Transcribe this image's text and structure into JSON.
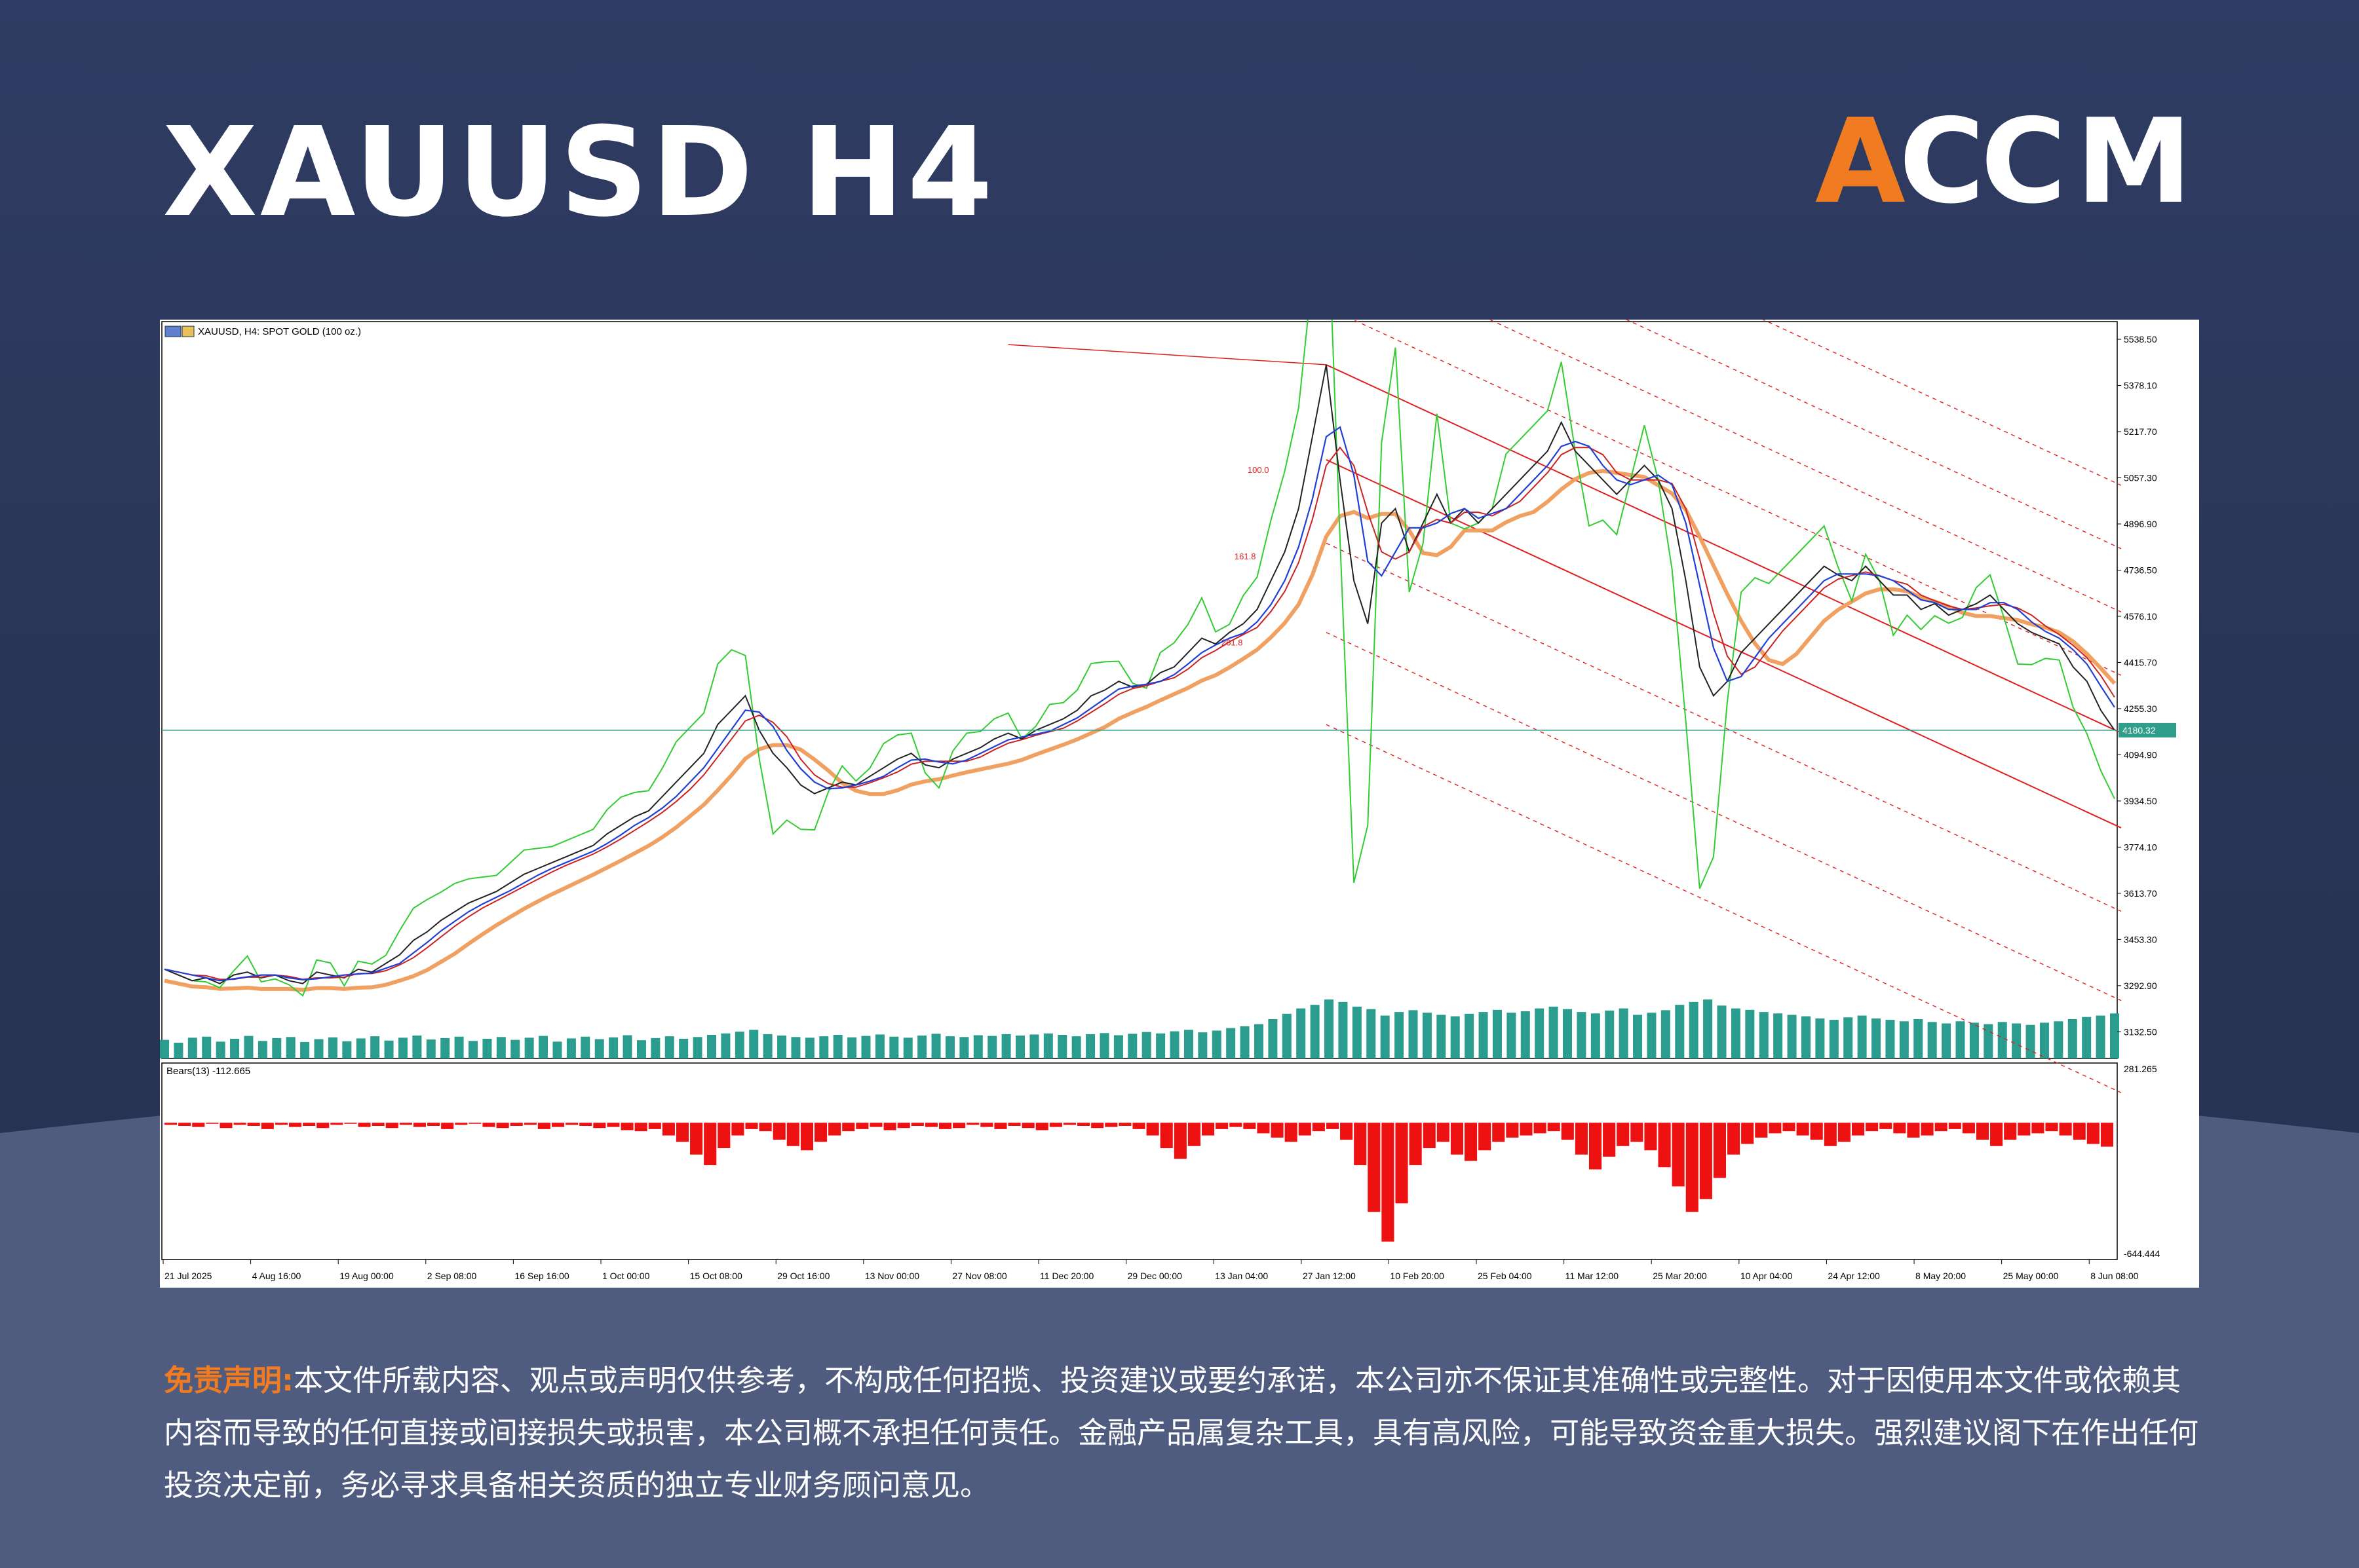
{
  "page": {
    "title": "XAUUSD H4",
    "logo_text": "ACCM",
    "disclaimer_label": "免责声明:",
    "disclaimer_text": "本文件所载内容、观点或声明仅供参考，不构成任何招揽、投资建议或要约承诺，本公司亦不保证其准确性或完整性。对于因使用本文件或依赖其内容而导致的任何直接或间接损失或损害，本公司概不承担任何责任。金融产品属复杂工具，具有高风险，可能导致资金重大损失。强烈建议阁下在作出任何投资决定前，务必寻求具备相关资质的独立专业财务顾问意见。"
  },
  "colors": {
    "accent": "#f07b20",
    "background": "#2a3557",
    "price_line": "#2f9e8a",
    "channel": "#e02020",
    "indicator_bar": "#ee1111",
    "volume": "#2a9d8f",
    "ma_blue": "#1f3fd6",
    "ma_green": "#33cc33",
    "ma_red": "#cc2222"
  },
  "chart_data": [
    {
      "type": "line",
      "header": "XAUUSD, H4:  SPOT GOLD (100 oz.)",
      "current_price_label": "4180.32",
      "current_price": 4180.32,
      "ylim": [
        3040,
        5600
      ],
      "y_ticks": [
        5538.5,
        5378.1,
        5217.7,
        5057.3,
        4896.9,
        4736.5,
        4576.1,
        4415.7,
        4255.3,
        4094.9,
        3934.5,
        3774.1,
        3613.7,
        3453.3,
        3292.9,
        3132.5
      ],
      "x_labels": [
        "21 Jul 2025",
        "4 Aug 16:00",
        "19 Aug 00:00",
        "2 Sep 08:00",
        "16 Sep 16:00",
        "1 Oct 00:00",
        "15 Oct 08:00",
        "29 Oct 16:00",
        "13 Nov 00:00",
        "27 Nov 08:00",
        "11 Dec 20:00",
        "29 Dec 00:00",
        "13 Jan 04:00",
        "27 Jan 12:00",
        "10 Feb 20:00",
        "25 Feb 04:00",
        "11 Mar 12:00",
        "25 Mar 20:00",
        "10 Apr 04:00",
        "24 Apr 12:00",
        "8 May 20:00",
        "25 May 00:00",
        "8 Jun 08:00"
      ],
      "fib_labels": [
        "100.0",
        "161.8",
        "261.8"
      ],
      "series": [
        {
          "values": [
            3350,
            3330,
            3310,
            3320,
            3300,
            3330,
            3340,
            3320,
            3330,
            3310,
            3300,
            3340,
            3330,
            3320,
            3350,
            3340,
            3370,
            3400,
            3450,
            3480,
            3520,
            3550,
            3580,
            3600,
            3620,
            3650,
            3680,
            3700,
            3720,
            3740,
            3760,
            3780,
            3820,
            3850,
            3880,
            3900,
            3950,
            4000,
            4050,
            4100,
            4200,
            4250,
            4300,
            4180,
            4100,
            4050,
            3990,
            3960,
            3980,
            4000,
            3990,
            4020,
            4050,
            4080,
            4100,
            4060,
            4050,
            4080,
            4100,
            4120,
            4150,
            4170,
            4150,
            4180,
            4200,
            4220,
            4250,
            4300,
            4320,
            4350,
            4330,
            4340,
            4380,
            4400,
            4450,
            4500,
            4480,
            4520,
            4550,
            4600,
            4700,
            4800,
            4950,
            5200,
            5450,
            5050,
            4700,
            4550,
            4900,
            4950,
            4800,
            4900,
            5000,
            4900,
            4950,
            4900,
            4950,
            5000,
            5050,
            5100,
            5150,
            5250,
            5150,
            5100,
            5050,
            5000,
            5050,
            5100,
            5050,
            4950,
            4700,
            4400,
            4300,
            4350,
            4450,
            4500,
            4550,
            4600,
            4650,
            4700,
            4750,
            4720,
            4700,
            4750,
            4700,
            4650,
            4650,
            4600,
            4620,
            4580,
            4600,
            4620,
            4650,
            4600,
            4550,
            4520,
            4500,
            4480,
            4400,
            4350,
            4250,
            4180
          ]
        }
      ],
      "volume": [
        52,
        44,
        58,
        61,
        47,
        55,
        63,
        49,
        57,
        60,
        46,
        54,
        59,
        48,
        56,
        62,
        50,
        58,
        64,
        53,
        57,
        61,
        49,
        55,
        60,
        52,
        58,
        63,
        47,
        56,
        61,
        54,
        59,
        65,
        51,
        57,
        62,
        55,
        60,
        66,
        70,
        75,
        80,
        68,
        64,
        60,
        58,
        62,
        66,
        59,
        63,
        67,
        61,
        58,
        64,
        69,
        62,
        60,
        65,
        63,
        68,
        64,
        67,
        70,
        66,
        62,
        68,
        71,
        65,
        69,
        74,
        70,
        76,
        80,
        73,
        78,
        85,
        90,
        96,
        110,
        125,
        140,
        150,
        165,
        158,
        145,
        138,
        120,
        130,
        135,
        128,
        122,
        118,
        125,
        130,
        136,
        128,
        132,
        140,
        145,
        138,
        130,
        126,
        134,
        140,
        122,
        128,
        135,
        150,
        158,
        165,
        148,
        140,
        136,
        130,
        126,
        122,
        118,
        112,
        108,
        115,
        120,
        112,
        108,
        104,
        110,
        102,
        98,
        104,
        100,
        96,
        102,
        98,
        94,
        100,
        104,
        110,
        116,
        120,
        126
      ],
      "indicator": {
        "name": "Bears(13)",
        "label": "Bears(13) -112.665",
        "value": -112.665,
        "ylim": [
          -644.444,
          281.265
        ],
        "y_ticks_labels": [
          "281.265",
          "-644.444"
        ],
        "values": [
          -10,
          -15,
          -20,
          -5,
          -25,
          -10,
          -15,
          -30,
          -10,
          -20,
          -15,
          -25,
          -10,
          -5,
          -20,
          -15,
          -25,
          -10,
          -20,
          -15,
          -30,
          -10,
          -5,
          -20,
          -25,
          -15,
          -10,
          -30,
          -20,
          -10,
          -15,
          -25,
          -20,
          -35,
          -40,
          -30,
          -60,
          -90,
          -150,
          -200,
          -120,
          -60,
          -30,
          -40,
          -80,
          -110,
          -130,
          -90,
          -60,
          -40,
          -30,
          -20,
          -35,
          -25,
          -15,
          -20,
          -30,
          -25,
          -10,
          -20,
          -30,
          -15,
          -25,
          -35,
          -20,
          -10,
          -15,
          -25,
          -20,
          -15,
          -30,
          -60,
          -120,
          -170,
          -110,
          -60,
          -30,
          -20,
          -30,
          -50,
          -70,
          -90,
          -60,
          -40,
          -30,
          -80,
          -200,
          -420,
          -560,
          -380,
          -200,
          -120,
          -90,
          -150,
          -180,
          -130,
          -90,
          -70,
          -60,
          -50,
          -40,
          -80,
          -150,
          -220,
          -160,
          -110,
          -90,
          -130,
          -210,
          -300,
          -420,
          -360,
          -260,
          -150,
          -100,
          -70,
          -50,
          -40,
          -60,
          -80,
          -110,
          -90,
          -60,
          -40,
          -30,
          -50,
          -70,
          -60,
          -40,
          -30,
          -50,
          -80,
          -110,
          -80,
          -60,
          -50,
          -40,
          -60,
          -80,
          -100,
          -112.665
        ]
      }
    }
  ]
}
